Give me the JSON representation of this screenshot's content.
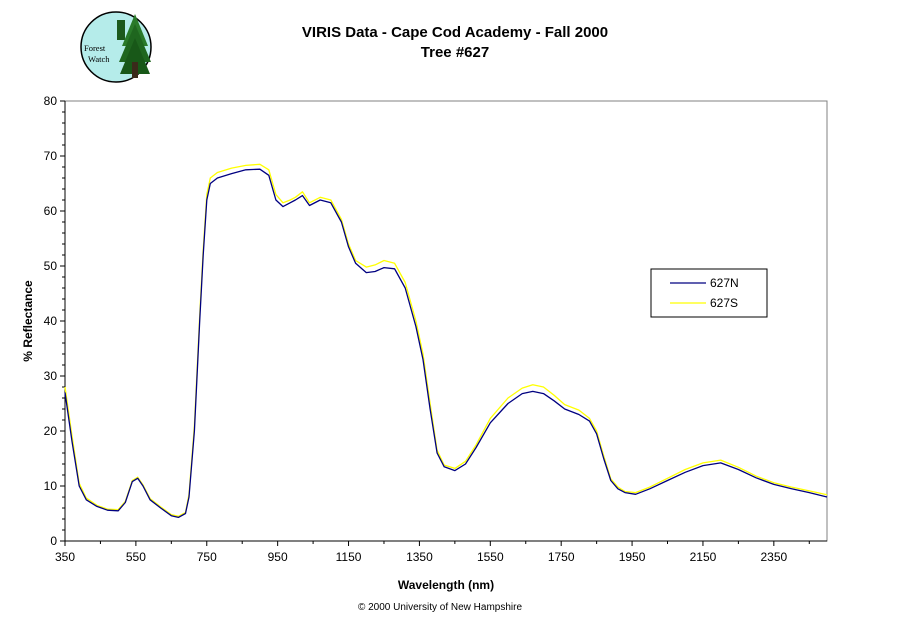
{
  "logo": {
    "line1": "Forest",
    "line2": "Watch"
  },
  "chart_data": {
    "type": "line",
    "title": "VIRIS Data - Cape Cod Academy - Fall 2000",
    "subtitle": "Tree #627",
    "xlabel": "Wavelength (nm)",
    "ylabel": "% Reflectance",
    "xlim": [
      350,
      2500
    ],
    "ylim": [
      0,
      80
    ],
    "xticks": [
      "350",
      "550",
      "750",
      "950",
      "1150",
      "1350",
      "1550",
      "1750",
      "1950",
      "2150",
      "2350"
    ],
    "yticks": [
      "0",
      "10",
      "20",
      "30",
      "40",
      "50",
      "60",
      "70",
      "80"
    ],
    "grid": false,
    "legend_position": "right",
    "series": [
      {
        "name": "627N",
        "color": "#000080",
        "points": [
          [
            350,
            27
          ],
          [
            370,
            18
          ],
          [
            390,
            10
          ],
          [
            410,
            7.5
          ],
          [
            440,
            6.3
          ],
          [
            470,
            5.6
          ],
          [
            500,
            5.5
          ],
          [
            520,
            7
          ],
          [
            540,
            10.8
          ],
          [
            555,
            11.4
          ],
          [
            570,
            10
          ],
          [
            590,
            7.5
          ],
          [
            620,
            6
          ],
          [
            650,
            4.6
          ],
          [
            670,
            4.3
          ],
          [
            690,
            5
          ],
          [
            700,
            8
          ],
          [
            715,
            20
          ],
          [
            730,
            40
          ],
          [
            740,
            52
          ],
          [
            750,
            62
          ],
          [
            760,
            65
          ],
          [
            780,
            66
          ],
          [
            820,
            66.8
          ],
          [
            860,
            67.5
          ],
          [
            900,
            67.6
          ],
          [
            925,
            66.5
          ],
          [
            945,
            62
          ],
          [
            965,
            60.8
          ],
          [
            985,
            61.5
          ],
          [
            1000,
            62
          ],
          [
            1020,
            62.8
          ],
          [
            1040,
            61
          ],
          [
            1070,
            62
          ],
          [
            1100,
            61.5
          ],
          [
            1130,
            58
          ],
          [
            1150,
            53.5
          ],
          [
            1170,
            50.5
          ],
          [
            1200,
            48.8
          ],
          [
            1225,
            49
          ],
          [
            1250,
            49.7
          ],
          [
            1280,
            49.5
          ],
          [
            1310,
            46
          ],
          [
            1340,
            39
          ],
          [
            1360,
            33
          ],
          [
            1380,
            24
          ],
          [
            1400,
            16
          ],
          [
            1420,
            13.5
          ],
          [
            1450,
            12.8
          ],
          [
            1480,
            14
          ],
          [
            1510,
            17
          ],
          [
            1550,
            21.5
          ],
          [
            1600,
            25
          ],
          [
            1640,
            26.8
          ],
          [
            1670,
            27.2
          ],
          [
            1700,
            26.8
          ],
          [
            1730,
            25.5
          ],
          [
            1760,
            24
          ],
          [
            1800,
            23
          ],
          [
            1830,
            21.8
          ],
          [
            1850,
            19.5
          ],
          [
            1870,
            15
          ],
          [
            1890,
            11
          ],
          [
            1910,
            9.5
          ],
          [
            1930,
            8.8
          ],
          [
            1960,
            8.5
          ],
          [
            2000,
            9.5
          ],
          [
            2050,
            11
          ],
          [
            2100,
            12.5
          ],
          [
            2150,
            13.7
          ],
          [
            2200,
            14.2
          ],
          [
            2250,
            13
          ],
          [
            2300,
            11.5
          ],
          [
            2350,
            10.3
          ],
          [
            2400,
            9.5
          ],
          [
            2450,
            8.8
          ],
          [
            2500,
            8
          ]
        ]
      },
      {
        "name": "627S",
        "color": "#FFFF00",
        "points": [
          [
            350,
            28
          ],
          [
            370,
            19
          ],
          [
            390,
            10.5
          ],
          [
            410,
            7.8
          ],
          [
            440,
            6.5
          ],
          [
            470,
            5.8
          ],
          [
            500,
            5.7
          ],
          [
            520,
            7.2
          ],
          [
            540,
            11
          ],
          [
            555,
            11.6
          ],
          [
            570,
            10.2
          ],
          [
            590,
            7.7
          ],
          [
            620,
            6.2
          ],
          [
            650,
            4.8
          ],
          [
            670,
            4.5
          ],
          [
            690,
            5.2
          ],
          [
            700,
            8.5
          ],
          [
            715,
            21
          ],
          [
            730,
            41
          ],
          [
            740,
            53
          ],
          [
            750,
            63
          ],
          [
            760,
            66
          ],
          [
            780,
            67
          ],
          [
            820,
            67.8
          ],
          [
            860,
            68.3
          ],
          [
            900,
            68.5
          ],
          [
            925,
            67.5
          ],
          [
            945,
            63
          ],
          [
            965,
            61.5
          ],
          [
            985,
            62
          ],
          [
            1000,
            62.5
          ],
          [
            1020,
            63.5
          ],
          [
            1040,
            61.5
          ],
          [
            1070,
            62.5
          ],
          [
            1100,
            62
          ],
          [
            1130,
            58.5
          ],
          [
            1150,
            54
          ],
          [
            1170,
            51
          ],
          [
            1200,
            49.8
          ],
          [
            1225,
            50.2
          ],
          [
            1250,
            51
          ],
          [
            1280,
            50.5
          ],
          [
            1310,
            47
          ],
          [
            1340,
            40
          ],
          [
            1360,
            34
          ],
          [
            1380,
            25
          ],
          [
            1400,
            16.5
          ],
          [
            1420,
            13.8
          ],
          [
            1450,
            13.2
          ],
          [
            1480,
            14.5
          ],
          [
            1510,
            17.5
          ],
          [
            1550,
            22.3
          ],
          [
            1600,
            26
          ],
          [
            1640,
            27.8
          ],
          [
            1670,
            28.4
          ],
          [
            1700,
            28
          ],
          [
            1730,
            26.5
          ],
          [
            1760,
            24.8
          ],
          [
            1800,
            23.8
          ],
          [
            1830,
            22.3
          ],
          [
            1850,
            20
          ],
          [
            1870,
            15.5
          ],
          [
            1890,
            11.3
          ],
          [
            1910,
            9.8
          ],
          [
            1930,
            9
          ],
          [
            1960,
            8.8
          ],
          [
            2000,
            9.8
          ],
          [
            2050,
            11.4
          ],
          [
            2100,
            13
          ],
          [
            2150,
            14.2
          ],
          [
            2200,
            14.7
          ],
          [
            2250,
            13.4
          ],
          [
            2300,
            11.8
          ],
          [
            2350,
            10.6
          ],
          [
            2400,
            9.8
          ],
          [
            2450,
            9.1
          ],
          [
            2500,
            8.4
          ]
        ]
      }
    ]
  },
  "copyright": "© 2000 University of New Hampshire"
}
